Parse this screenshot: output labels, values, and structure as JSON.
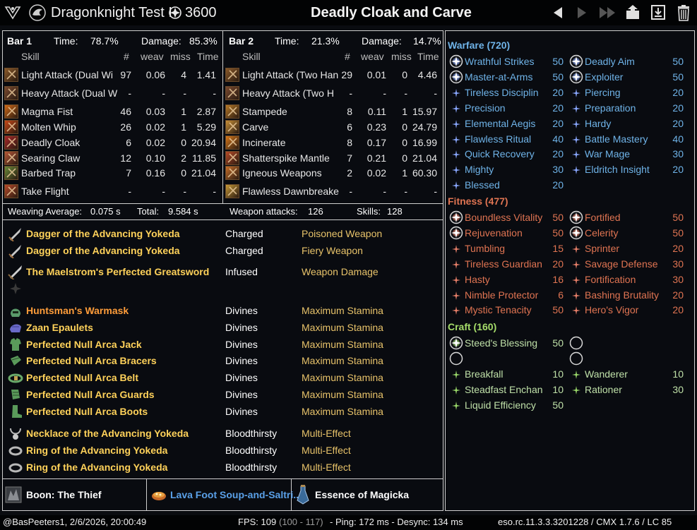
{
  "titlebar": {
    "character_name": "Dragonknight Test I",
    "champion_points": "3600",
    "build_title": "Deadly Cloak and Carve",
    "buttons": [
      "prev-icon",
      "play-icon",
      "fast-forward-icon",
      "upload-icon",
      "save-icon",
      "trash-icon"
    ]
  },
  "bar1": {
    "label": "Bar 1",
    "time_label": "Time:",
    "time": "78.7%",
    "damage_label": "Damage:",
    "damage": "85.3%",
    "col_skill": "Skill",
    "col_count": "#",
    "col_weav": "weav",
    "col_miss": "miss",
    "col_time": "Time",
    "skills": [
      {
        "name": "Light Attack (Dual Wi",
        "count": "97",
        "weav": "0.06",
        "miss": "4",
        "time": "1.41",
        "color": "#8a5a2a"
      },
      {
        "name": "Heavy Attack (Dual W",
        "count": "-",
        "weav": "-",
        "miss": "-",
        "time": "-",
        "color": "#7a4a30"
      },
      {
        "name": "Magma Fist",
        "count": "46",
        "weav": "0.03",
        "miss": "1",
        "time": "2.87",
        "color": "#d06a18"
      },
      {
        "name": "Molten Whip",
        "count": "26",
        "weav": "0.02",
        "miss": "1",
        "time": "5.29",
        "color": "#c84818"
      },
      {
        "name": "Deadly Cloak",
        "count": "6",
        "weav": "0.02",
        "miss": "0",
        "time": "20.94",
        "color": "#a8282a"
      },
      {
        "name": "Searing Claw",
        "count": "12",
        "weav": "0.10",
        "miss": "2",
        "time": "11.85",
        "color": "#b85838"
      },
      {
        "name": "Barbed Trap",
        "count": "7",
        "weav": "0.16",
        "miss": "0",
        "time": "21.04",
        "color": "#6a8a3a"
      },
      {
        "name": "Take Flight",
        "count": "-",
        "weav": "-",
        "miss": "-",
        "time": "-",
        "color": "#b84a2a"
      }
    ]
  },
  "bar2": {
    "label": "Bar 2",
    "time_label": "Time:",
    "time": "21.3%",
    "damage_label": "Damage:",
    "damage": "14.7%",
    "col_skill": "Skill",
    "col_count": "#",
    "col_weav": "weav",
    "col_miss": "miss",
    "col_time": "Time",
    "skills": [
      {
        "name": "Light Attack (Two Han",
        "count": "29",
        "weav": "0.01",
        "miss": "0",
        "time": "4.46",
        "color": "#8a5a2a"
      },
      {
        "name": "Heavy Attack (Two H",
        "count": "-",
        "weav": "-",
        "miss": "-",
        "time": "-",
        "color": "#7a4a30"
      },
      {
        "name": "Stampede",
        "count": "8",
        "weav": "0.11",
        "miss": "1",
        "time": "15.97",
        "color": "#b87a28"
      },
      {
        "name": "Carve",
        "count": "6",
        "weav": "0.23",
        "miss": "0",
        "time": "24.79",
        "color": "#c89038"
      },
      {
        "name": "Incinerate",
        "count": "8",
        "weav": "0.17",
        "miss": "0",
        "time": "16.99",
        "color": "#d8781a"
      },
      {
        "name": "Shatterspike Mantle",
        "count": "7",
        "weav": "0.21",
        "miss": "0",
        "time": "21.04",
        "color": "#b84a28"
      },
      {
        "name": "Igneous Weapons",
        "count": "2",
        "weav": "0.02",
        "miss": "1",
        "time": "60.30",
        "color": "#c8702a"
      },
      {
        "name": "Flawless Dawnbreake",
        "count": "-",
        "weav": "-",
        "miss": "-",
        "time": "-",
        "color": "#c89a38"
      }
    ]
  },
  "stats": {
    "weaving_label": "Weaving Average:",
    "weaving": "0.075 s",
    "total_label": "Total:",
    "total": "9.584 s",
    "weapon_attacks_label": "Weapon attacks:",
    "weapon_attacks": "126",
    "skills_label": "Skills:",
    "skills": "128"
  },
  "gear": [
    {
      "name": "Dagger of the Advancing Yokeda",
      "trait": "Charged",
      "enchant": "Poisoned Weapon",
      "quality": "gold",
      "icon": "dagger-icon"
    },
    {
      "name": "Dagger of the Advancing Yokeda",
      "trait": "Charged",
      "enchant": "Fiery Weapon",
      "quality": "gold",
      "icon": "dagger-icon"
    },
    {
      "name": "The Maelstrom's Perfected Greatsword",
      "trait": "Infused",
      "enchant": "Weapon Damage",
      "quality": "gold",
      "icon": "greatsword-icon"
    },
    {
      "name": "",
      "trait": "",
      "enchant": "",
      "quality": "gold",
      "icon": "empty-slot-icon"
    },
    {
      "name": "Huntsman's Warmask",
      "trait": "Divines",
      "enchant": "Maximum Stamina",
      "quality": "orange",
      "icon": "helmet-icon"
    },
    {
      "name": "Zaan Epaulets",
      "trait": "Divines",
      "enchant": "Maximum Stamina",
      "quality": "gold",
      "icon": "shoulder-icon"
    },
    {
      "name": "Perfected Null Arca Jack",
      "trait": "Divines",
      "enchant": "Maximum Stamina",
      "quality": "gold",
      "icon": "chest-icon"
    },
    {
      "name": "Perfected Null Arca Bracers",
      "trait": "Divines",
      "enchant": "Maximum Stamina",
      "quality": "gold",
      "icon": "bracers-icon"
    },
    {
      "name": "Perfected Null Arca Belt",
      "trait": "Divines",
      "enchant": "Maximum Stamina",
      "quality": "gold",
      "icon": "belt-icon"
    },
    {
      "name": "Perfected Null Arca Guards",
      "trait": "Divines",
      "enchant": "Maximum Stamina",
      "quality": "gold",
      "icon": "guards-icon"
    },
    {
      "name": "Perfected Null Arca Boots",
      "trait": "Divines",
      "enchant": "Maximum Stamina",
      "quality": "gold",
      "icon": "boots-icon"
    },
    {
      "name": "Necklace of the Advancing Yokeda",
      "trait": "Bloodthirsty",
      "enchant": "Multi-Effect",
      "quality": "gold",
      "icon": "necklace-icon"
    },
    {
      "name": "Ring of the Advancing Yokeda",
      "trait": "Bloodthirsty",
      "enchant": "Multi-Effect",
      "quality": "gold",
      "icon": "ring-icon"
    },
    {
      "name": "Ring of the Advancing Yokeda",
      "trait": "Bloodthirsty",
      "enchant": "Multi-Effect",
      "quality": "gold",
      "icon": "ring-icon"
    }
  ],
  "buffs": {
    "mundus": "Boon: The Thief",
    "food": "Lava Foot Soup-and-Saltri...",
    "potion": "Essence of Magicka"
  },
  "champion": {
    "warfare": {
      "title": "Warfare (720)",
      "left": [
        {
          "name": "Wrathful Strikes",
          "points": "50",
          "slotted": true
        },
        {
          "name": "Master-at-Arms",
          "points": "50",
          "slotted": true
        },
        {
          "name": "Tireless Disciplin",
          "points": "20",
          "slotted": false
        },
        {
          "name": "Precision",
          "points": "20",
          "slotted": false
        },
        {
          "name": "Elemental Aegis",
          "points": "20",
          "slotted": false
        },
        {
          "name": "Flawless Ritual",
          "points": "40",
          "slotted": false
        },
        {
          "name": "Quick Recovery",
          "points": "20",
          "slotted": false
        },
        {
          "name": "Mighty",
          "points": "30",
          "slotted": false
        },
        {
          "name": "Blessed",
          "points": "20",
          "slotted": false
        }
      ],
      "right": [
        {
          "name": "Deadly Aim",
          "points": "50",
          "slotted": true
        },
        {
          "name": "Exploiter",
          "points": "50",
          "slotted": true
        },
        {
          "name": "Piercing",
          "points": "20",
          "slotted": false
        },
        {
          "name": "Preparation",
          "points": "20",
          "slotted": false
        },
        {
          "name": "Hardy",
          "points": "20",
          "slotted": false
        },
        {
          "name": "Battle Mastery",
          "points": "40",
          "slotted": false
        },
        {
          "name": "War Mage",
          "points": "30",
          "slotted": false
        },
        {
          "name": "Eldritch Insight",
          "points": "20",
          "slotted": false
        }
      ]
    },
    "fitness": {
      "title": "Fitness (477)",
      "left": [
        {
          "name": "Boundless Vitality",
          "points": "50",
          "slotted": true
        },
        {
          "name": "Rejuvenation",
          "points": "50",
          "slotted": true
        },
        {
          "name": "Tumbling",
          "points": "15",
          "slotted": false
        },
        {
          "name": "Tireless Guardian",
          "points": "20",
          "slotted": false
        },
        {
          "name": "Hasty",
          "points": "16",
          "slotted": false
        },
        {
          "name": "Nimble Protector",
          "points": "6",
          "slotted": false
        },
        {
          "name": "Mystic Tenacity",
          "points": "50",
          "slotted": false
        }
      ],
      "right": [
        {
          "name": "Fortified",
          "points": "50",
          "slotted": true
        },
        {
          "name": "Celerity",
          "points": "50",
          "slotted": true
        },
        {
          "name": "Sprinter",
          "points": "20",
          "slotted": false
        },
        {
          "name": "Savage Defense",
          "points": "30",
          "slotted": false
        },
        {
          "name": "Fortification",
          "points": "30",
          "slotted": false
        },
        {
          "name": "Bashing Brutality",
          "points": "20",
          "slotted": false
        },
        {
          "name": "Hero's Vigor",
          "points": "20",
          "slotted": false
        }
      ]
    },
    "craft": {
      "title": "Craft (160)",
      "slotted": [
        {
          "name": "Steed's Blessing",
          "points": "50"
        }
      ],
      "left": [
        {
          "name": "Breakfall",
          "points": "10"
        },
        {
          "name": "Steadfast Enchan",
          "points": "10"
        },
        {
          "name": "Liquid Efficiency",
          "points": "50"
        }
      ],
      "right": [
        {
          "name": "Wanderer",
          "points": "10"
        },
        {
          "name": "Rationer",
          "points": "30"
        }
      ]
    }
  },
  "footer": {
    "user_date": "@BasPeeters1, 2/6/2026, 20:00:49",
    "fps": "FPS: 109",
    "fps_range": "(100 - 117)",
    "ping": "- Ping: 172 ms - Desync: 134 ms",
    "version": "eso.rc.11.3.3.3201228 / CMX 1.7.6 / LC 85"
  },
  "colors": {
    "gold_item": "#ffd25a",
    "orange_item": "#ff9d3a",
    "enchant": "#e8c36a",
    "warfare": "#6fb3e8",
    "fitness": "#e07452",
    "craft": "#a6dd6a",
    "mundus_food_blue": "#5aa0e8"
  }
}
